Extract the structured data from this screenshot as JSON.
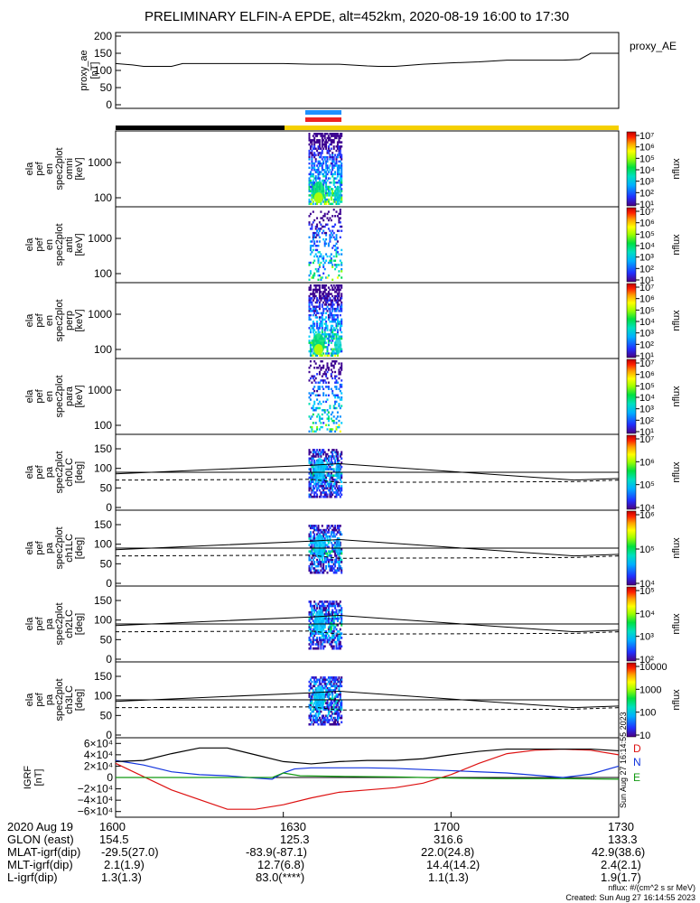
{
  "title": "PRELIMINARY ELFIN-A EPDE, alt=452km, 2020-08-19 16:00 to 17:30",
  "x_ticks": [
    {
      "t": 0,
      "label": "1600"
    },
    {
      "t": 30,
      "label": "1630"
    },
    {
      "t": 60,
      "label": "1700"
    },
    {
      "t": 90,
      "label": "1730"
    }
  ],
  "chart_data": [
    {
      "type": "line",
      "id": "proxy_ae",
      "ylabel_lines": [
        "proxy_ae",
        "[nT]"
      ],
      "legend": "proxy_AE",
      "ylim": [
        0,
        200
      ],
      "yticks": [
        {
          "v": 0,
          "label": "0"
        },
        {
          "v": 50,
          "label": "50"
        },
        {
          "v": 100,
          "label": "100"
        },
        {
          "v": 150,
          "label": "150"
        },
        {
          "v": 200,
          "label": "200"
        }
      ],
      "x_minutes": [
        0,
        3,
        5,
        10,
        12,
        20,
        30,
        35,
        40,
        45,
        47,
        50,
        55,
        60,
        65,
        70,
        75,
        80,
        83,
        85,
        90
      ],
      "values": [
        120,
        116,
        112,
        112,
        120,
        120,
        120,
        118,
        118,
        113,
        112,
        112,
        118,
        122,
        125,
        130,
        130,
        130,
        132,
        150,
        150
      ]
    },
    {
      "type": "heatmap",
      "id": "en_spec_omni",
      "ylabel_lines": [
        "ela",
        "pef",
        "en",
        "spec2plot",
        "omni",
        "[keV]"
      ],
      "yticks": [
        {
          "label": "1000"
        },
        {
          "label": "100"
        }
      ],
      "colorbar_label": "nflux",
      "colorbar_ticks": [
        "10¹",
        "10²",
        "10³",
        "10⁴",
        "10⁵",
        "10⁶",
        "10⁷"
      ]
    },
    {
      "type": "heatmap",
      "id": "en_spec_anti",
      "ylabel_lines": [
        "ela",
        "pef",
        "en",
        "spec2plot",
        "anti",
        "[keV]"
      ],
      "yticks": [
        {
          "label": "1000"
        },
        {
          "label": "100"
        }
      ],
      "colorbar_label": "nflux",
      "colorbar_ticks": [
        "10¹",
        "10²",
        "10³",
        "10⁴",
        "10⁵",
        "10⁶",
        "10⁷"
      ]
    },
    {
      "type": "heatmap",
      "id": "en_spec_perp",
      "ylabel_lines": [
        "ela",
        "pef",
        "en",
        "spec2plot",
        "perp",
        "[keV]"
      ],
      "yticks": [
        {
          "label": "1000"
        },
        {
          "label": "100"
        }
      ],
      "colorbar_label": "nflux",
      "colorbar_ticks": [
        "10¹",
        "10²",
        "10³",
        "10⁴",
        "10⁵",
        "10⁶",
        "10⁷"
      ]
    },
    {
      "type": "heatmap",
      "id": "en_spec_para",
      "ylabel_lines": [
        "ela",
        "pef",
        "en",
        "spec2plot",
        "para",
        "[keV]"
      ],
      "yticks": [
        {
          "label": "1000"
        },
        {
          "label": "100"
        }
      ],
      "colorbar_label": "nflux",
      "colorbar_ticks": [
        "10¹",
        "10²",
        "10³",
        "10⁴",
        "10⁵",
        "10⁶",
        "10⁷"
      ]
    },
    {
      "type": "heatmap",
      "id": "pa_spec_ch0",
      "ylabel_lines": [
        "ela",
        "pef",
        "pa",
        "spec2plot",
        "ch0LC",
        "[deg]"
      ],
      "ylim": [
        0,
        180
      ],
      "yticks": [
        {
          "v": 0,
          "label": "0"
        },
        {
          "v": 50,
          "label": "50"
        },
        {
          "v": 100,
          "label": "100"
        },
        {
          "v": 150,
          "label": "150"
        }
      ],
      "colorbar_label": "nflux",
      "colorbar_ticks": [
        "10⁴",
        "10⁵",
        "10⁶",
        "10⁷"
      ]
    },
    {
      "type": "heatmap",
      "id": "pa_spec_ch1",
      "ylabel_lines": [
        "ela",
        "pef",
        "pa",
        "spec2plot",
        "ch1LC",
        "[deg]"
      ],
      "ylim": [
        0,
        180
      ],
      "yticks": [
        {
          "v": 0,
          "label": "0"
        },
        {
          "v": 50,
          "label": "50"
        },
        {
          "v": 100,
          "label": "100"
        },
        {
          "v": 150,
          "label": "150"
        }
      ],
      "colorbar_label": "nflux",
      "colorbar_ticks": [
        "10⁴",
        "10⁵",
        "10⁶"
      ]
    },
    {
      "type": "heatmap",
      "id": "pa_spec_ch2",
      "ylabel_lines": [
        "ela",
        "pef",
        "pa",
        "spec2plot",
        "ch2LC",
        "[deg]"
      ],
      "ylim": [
        0,
        180
      ],
      "yticks": [
        {
          "v": 0,
          "label": "0"
        },
        {
          "v": 50,
          "label": "50"
        },
        {
          "v": 100,
          "label": "100"
        },
        {
          "v": 150,
          "label": "150"
        }
      ],
      "colorbar_label": "nflux",
      "colorbar_ticks": [
        "10²",
        "10³",
        "10⁴",
        "10⁵"
      ]
    },
    {
      "type": "heatmap",
      "id": "pa_spec_ch3",
      "ylabel_lines": [
        "ela",
        "pef",
        "pa",
        "spec2plot",
        "ch3LC",
        "[deg]"
      ],
      "ylim": [
        0,
        180
      ],
      "yticks": [
        {
          "v": 0,
          "label": "0"
        },
        {
          "v": 50,
          "label": "50"
        },
        {
          "v": 100,
          "label": "100"
        },
        {
          "v": 150,
          "label": "150"
        }
      ],
      "colorbar_label": "nflux",
      "colorbar_ticks": [
        "10",
        "100",
        "1000",
        "10000"
      ]
    },
    {
      "type": "line",
      "id": "igrf",
      "ylabel_lines": [
        "IGRF",
        "[nT]"
      ],
      "ylim": [
        -70000,
        70000
      ],
      "yticks": [
        {
          "v": 60000,
          "label": "6×10⁴"
        },
        {
          "v": 40000,
          "label": "4×10⁴"
        },
        {
          "v": 20000,
          "label": "2×10⁴"
        },
        {
          "v": 0,
          "label": "0"
        },
        {
          "v": -20000,
          "label": "−2×10⁴"
        },
        {
          "v": -40000,
          "label": "−4×10⁴"
        },
        {
          "v": -60000,
          "label": "−6×10⁴"
        }
      ],
      "series": [
        {
          "name": "D",
          "color": "#dd1111",
          "x": [
            0,
            10,
            20,
            25,
            30,
            35,
            40,
            45,
            50,
            55,
            60,
            65,
            70,
            75,
            80,
            85,
            90
          ],
          "values": [
            25000,
            -22000,
            -56000,
            -56000,
            -48000,
            -36000,
            -26000,
            -22000,
            -18000,
            -10000,
            5000,
            25000,
            42000,
            48000,
            50000,
            48000,
            40000
          ]
        },
        {
          "name": "N",
          "color": "#1133dd",
          "x": [
            0,
            5,
            10,
            15,
            20,
            25,
            28,
            30,
            32,
            35,
            40,
            45,
            50,
            55,
            60,
            65,
            70,
            75,
            80,
            85,
            90
          ],
          "values": [
            30000,
            22000,
            10000,
            5000,
            3000,
            -1000,
            -3000,
            8000,
            15000,
            17000,
            17000,
            17000,
            16000,
            14000,
            12000,
            10000,
            8000,
            4000,
            0,
            6000,
            20000
          ]
        },
        {
          "name": "E",
          "color": "#119911",
          "x": [
            0,
            10,
            20,
            28,
            30,
            33,
            40,
            50,
            60,
            70,
            80,
            90
          ],
          "values": [
            0,
            0,
            0,
            0,
            8000,
            3000,
            2000,
            1000,
            -1000,
            -2000,
            -2000,
            -3000
          ]
        },
        {
          "name": "",
          "color": "#000000",
          "x": [
            0,
            5,
            10,
            15,
            20,
            25,
            30,
            35,
            40,
            45,
            50,
            55,
            60,
            65,
            70,
            75,
            80,
            85,
            90
          ],
          "values": [
            28000,
            30000,
            42000,
            52000,
            52000,
            40000,
            28000,
            24000,
            28000,
            30000,
            30000,
            33000,
            40000,
            46000,
            50000,
            50000,
            50000,
            50000,
            47000
          ]
        }
      ]
    }
  ],
  "footer": {
    "rows": [
      {
        "label": "2020 Aug 19",
        "values": [
          "1600",
          "1630",
          "1700",
          "1730"
        ]
      },
      {
        "label": "GLON (east)",
        "values": [
          "154.5",
          "125.3",
          "316.6",
          "133.3"
        ]
      },
      {
        "label": "MLAT-igrf(dip)",
        "values": [
          "-29.5(27.0)",
          "-83.9(-87.1)",
          "22.0(24.8)",
          "42.9(38.6)"
        ]
      },
      {
        "label": "MLT-igrf(dip)",
        "values": [
          "2.1(1.9)",
          "12.7(6.8)",
          "14.4(14.2)",
          "2.4(2.1)"
        ]
      },
      {
        "label": "L-igrf(dip)",
        "values": [
          "1.3(1.3)",
          "83.0(****)",
          "1.1(1.3)",
          "1.9(1.7)"
        ]
      }
    ],
    "units_note": "nflux: #/(cm^2 s sr MeV)",
    "created": "Created: Sun Aug 27 16:14:55 2023",
    "side_stamp": "Sun Aug 27 16:14:55 2023"
  }
}
